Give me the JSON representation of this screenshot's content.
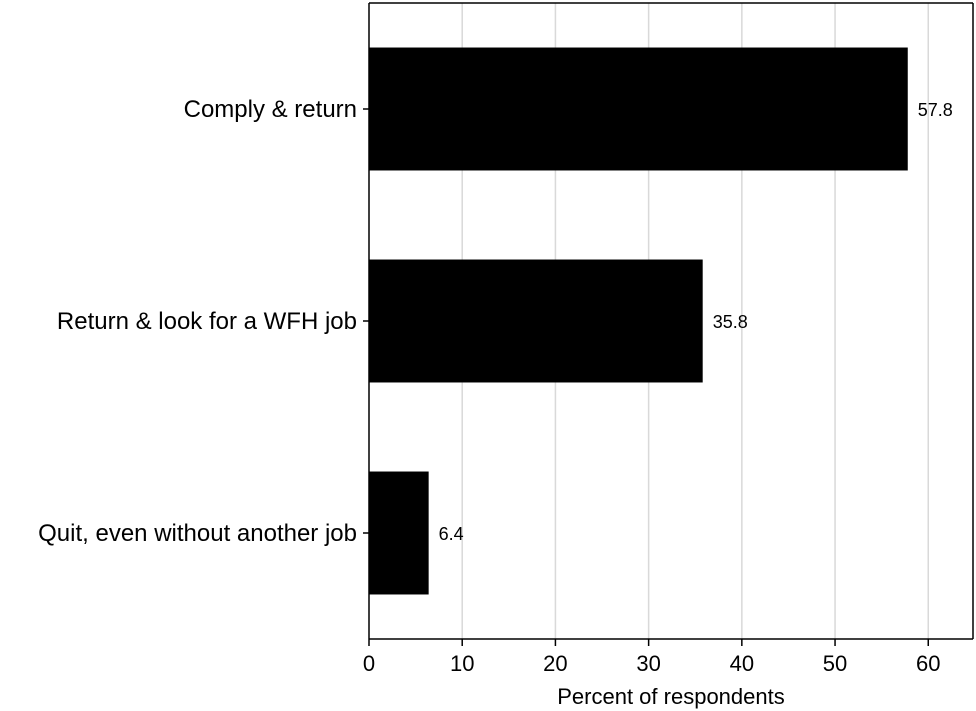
{
  "chart_data": {
    "type": "bar",
    "orientation": "horizontal",
    "categories": [
      "Comply & return",
      "Return & look for a WFH job",
      "Quit, even without another job"
    ],
    "values": [
      57.8,
      35.8,
      6.4
    ],
    "data_labels": [
      "57.8",
      "35.8",
      "6.4"
    ],
    "title": "",
    "xlabel": "Percent of respondents",
    "ylabel": "",
    "xlim": [
      0,
      64.8
    ],
    "xticks": [
      0,
      10,
      20,
      30,
      40,
      50,
      60
    ],
    "xtick_labels": [
      "0",
      "10",
      "20",
      "30",
      "40",
      "50",
      "60"
    ],
    "grid": "vertical",
    "legend": "none",
    "colors": {
      "bar": "#000000",
      "grid": "#d9d9d9",
      "axis": "#000000",
      "background": "#ffffff"
    }
  }
}
